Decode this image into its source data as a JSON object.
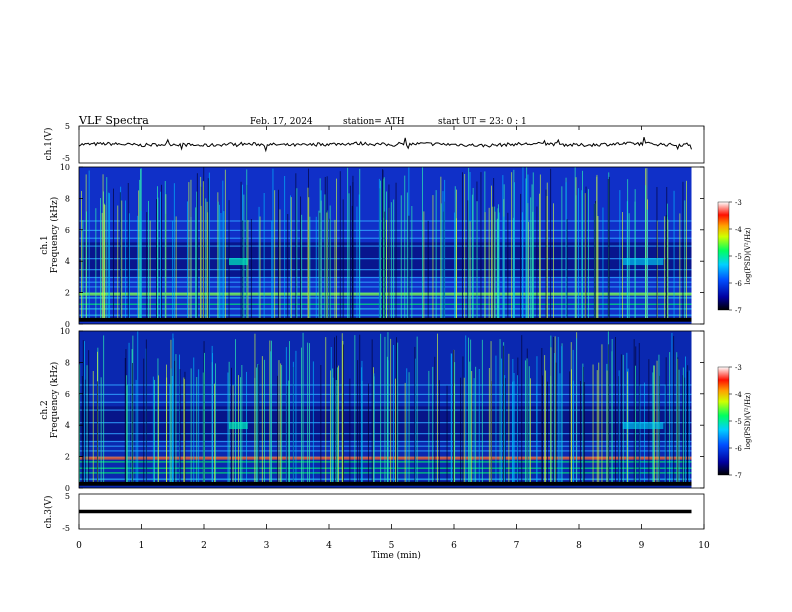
{
  "header": {
    "title": "VLF  Spectra",
    "date": "Feb. 17, 2024",
    "station": "station= ATH",
    "start_ut": "start  UT  =   23: 0  : 1"
  },
  "chart_data": [
    {
      "type": "line",
      "panel": "channel-1-waveform",
      "ylabel": "ch.1(V)",
      "ylim": [
        -5,
        5
      ],
      "yticks": [
        "5",
        "-5"
      ],
      "xlim": [
        0,
        10
      ],
      "trace_color": "#000000",
      "series": [
        {
          "x": [
            0,
            0.5,
            1,
            1.5,
            2,
            2.5,
            3,
            3.5,
            4,
            4.5,
            5,
            5.5,
            6,
            6.5,
            7,
            7.5,
            8,
            8.5,
            9,
            9.5,
            9.8
          ],
          "values": [
            0,
            0.2,
            -0.2,
            0.1,
            -0.3,
            0.2,
            0,
            -0.2,
            0.1,
            0.3,
            -0.1,
            0.2,
            0,
            -0.3,
            0.1,
            0.2,
            -0.2,
            0.1,
            0.3,
            -0.1,
            0
          ]
        }
      ]
    },
    {
      "type": "heatmap",
      "panel": "channel-1-spectrogram",
      "ylabel": "ch.1",
      "ylabel2": "Frequency  (kHz)",
      "ylim": [
        0,
        10
      ],
      "yticks": [
        "0",
        "2",
        "4",
        "6",
        "8",
        "10"
      ],
      "xlim": [
        0,
        9.8
      ],
      "colorbar": {
        "label": "log(PSD)(V²/Hz)",
        "range": [
          -7,
          -3
        ],
        "ticks": [
          "-3",
          "-4",
          "-5",
          "-6",
          "-7"
        ]
      }
    },
    {
      "type": "heatmap",
      "panel": "channel-2-spectrogram",
      "ylabel": "ch.2",
      "ylabel2": "Frequency  (kHz)",
      "ylim": [
        0,
        10
      ],
      "yticks": [
        "0",
        "2",
        "4",
        "6",
        "8",
        "10"
      ],
      "xlim": [
        0,
        9.8
      ],
      "colorbar": {
        "label": "log(PSD)(V²/Hz)",
        "range": [
          -7,
          -3
        ],
        "ticks": [
          "-3",
          "-4",
          "-5",
          "-6",
          "-7"
        ]
      }
    },
    {
      "type": "line",
      "panel": "channel-3-waveform",
      "ylabel": "ch.3(V)",
      "ylim": [
        -5,
        5
      ],
      "yticks": [
        "5",
        "-5"
      ],
      "xlim": [
        0,
        10
      ],
      "trace_color": "#000000",
      "series": [
        {
          "x": [
            0,
            9.8
          ],
          "values": [
            0,
            0
          ]
        }
      ]
    }
  ],
  "x_axis": {
    "label": "Time  (min)",
    "ticks": [
      "0",
      "1",
      "2",
      "3",
      "4",
      "5",
      "6",
      "7",
      "8",
      "9",
      "10"
    ]
  }
}
